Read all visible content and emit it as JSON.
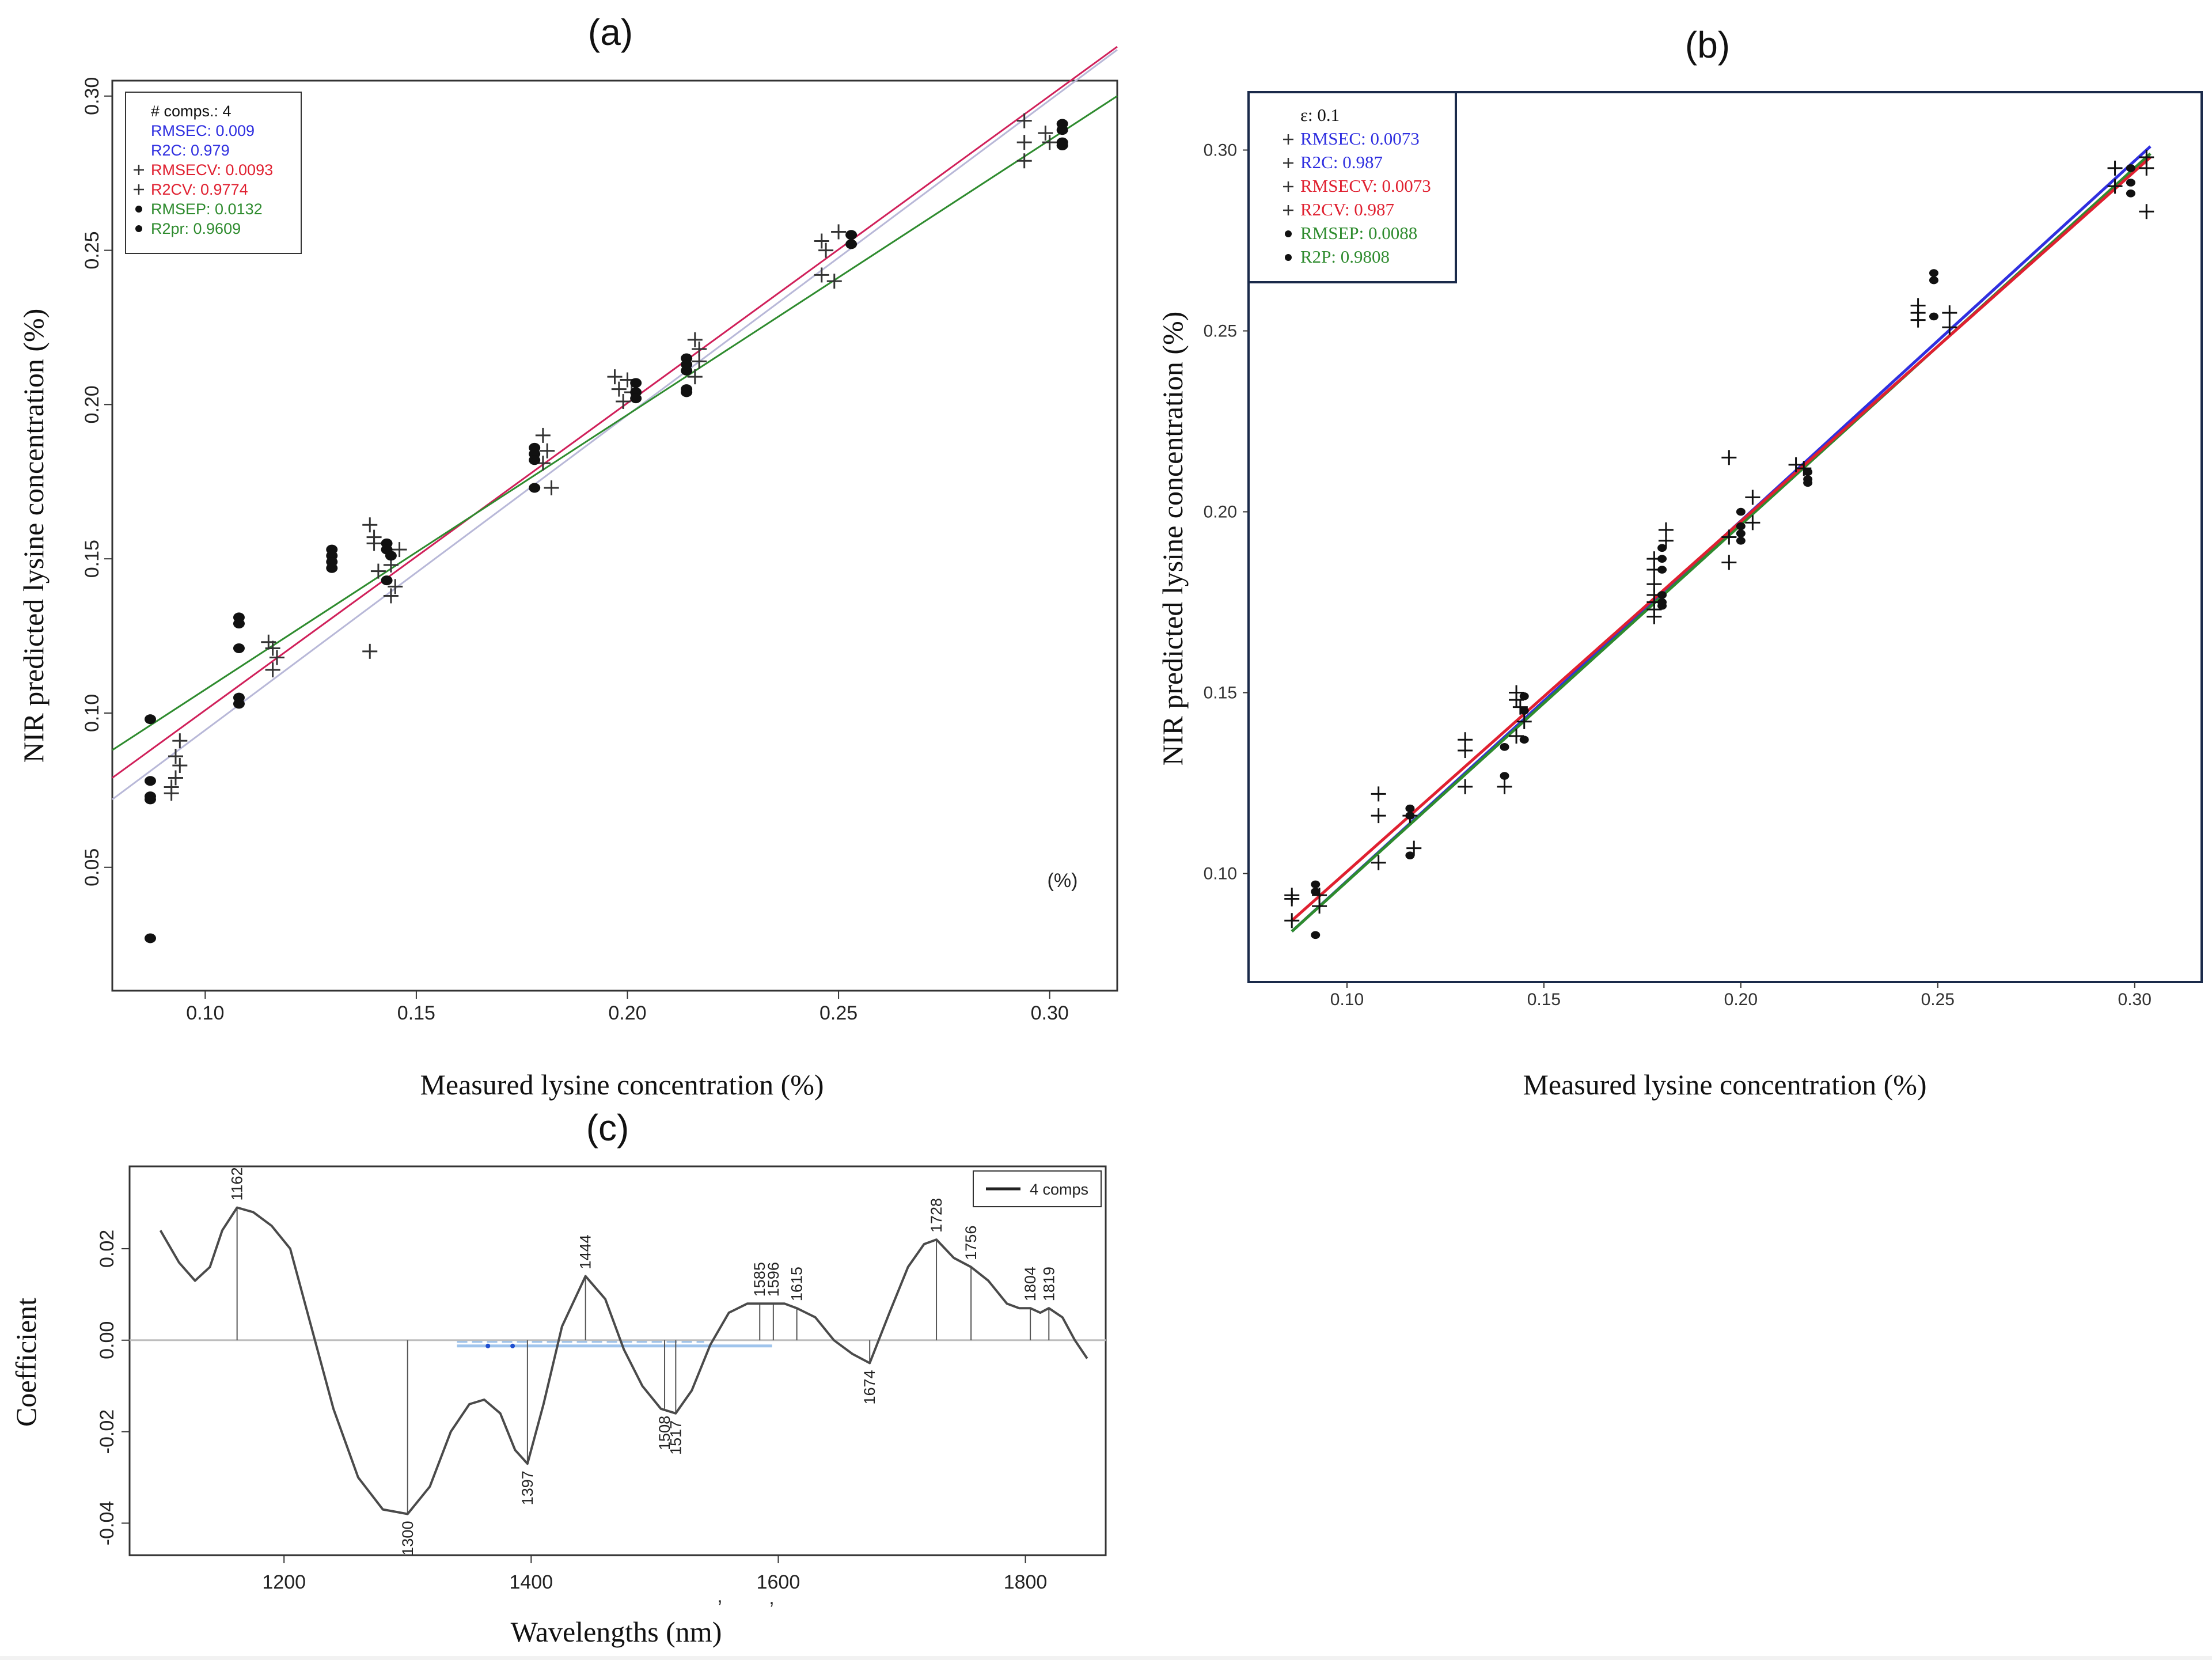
{
  "figure": {
    "panel_a_title": "(a)",
    "panel_b_title": "(b)",
    "panel_c_title": "(c)"
  },
  "chart_data": [
    {
      "id": "a",
      "type": "scatter",
      "title": "(a)",
      "xlabel": "Measured lysine concentration (%)",
      "ylabel": "NIR predicted lysine concentration (%)",
      "inner_annotation": "(%)",
      "xlim": [
        0.078,
        0.316
      ],
      "ylim": [
        0.01,
        0.305
      ],
      "xticks": [
        "0.10",
        "0.15",
        "0.20",
        "0.25",
        "0.30"
      ],
      "yticks": [
        "0.05",
        "0.10",
        "0.15",
        "0.20",
        "0.25",
        "0.30"
      ],
      "legend": {
        "position": "top-left",
        "entries": [
          {
            "text": "# comps.: 4",
            "color": "#111111",
            "marker": ""
          },
          {
            "text": "RMSEC: 0.009",
            "color": "#2f2fe0",
            "marker": ""
          },
          {
            "text": "R2C: 0.979",
            "color": "#2f2fe0",
            "marker": ""
          },
          {
            "text": "RMSECV: 0.0093",
            "color": "#e02030",
            "marker": "+"
          },
          {
            "text": "R2CV: 0.9774",
            "color": "#e02030",
            "marker": "+"
          },
          {
            "text": "RMSEP: 0.0132",
            "color": "#2e8b2e",
            "marker": "dot"
          },
          {
            "text": "R2pr: 0.9609",
            "color": "#2e8b2e",
            "marker": "dot"
          }
        ]
      },
      "lines": [
        {
          "name": "calibration",
          "color": "#b8b8d8",
          "x": [
            0.078,
            0.316
          ],
          "y": [
            0.072,
            0.315
          ]
        },
        {
          "name": "cross-validation",
          "color": "#d0205a",
          "x": [
            0.078,
            0.316
          ],
          "y": [
            0.079,
            0.316
          ]
        },
        {
          "name": "prediction",
          "color": "#2e8b2e",
          "x": [
            0.078,
            0.316
          ],
          "y": [
            0.088,
            0.3
          ]
        }
      ],
      "series": [
        {
          "name": "calibration/validation",
          "marker": "+",
          "color": "#333333",
          "points": [
            [
              0.092,
              0.074
            ],
            [
              0.093,
              0.079
            ],
            [
              0.093,
              0.086
            ],
            [
              0.094,
              0.091
            ],
            [
              0.094,
              0.083
            ],
            [
              0.092,
              0.076
            ],
            [
              0.115,
              0.123
            ],
            [
              0.116,
              0.121
            ],
            [
              0.117,
              0.118
            ],
            [
              0.116,
              0.114
            ],
            [
              0.139,
              0.161
            ],
            [
              0.14,
              0.155
            ],
            [
              0.141,
              0.146
            ],
            [
              0.139,
              0.12
            ],
            [
              0.144,
              0.138
            ],
            [
              0.145,
              0.141
            ],
            [
              0.144,
              0.148
            ],
            [
              0.146,
              0.153
            ],
            [
              0.14,
              0.157
            ],
            [
              0.18,
              0.19
            ],
            [
              0.181,
              0.185
            ],
            [
              0.18,
              0.181
            ],
            [
              0.182,
              0.173
            ],
            [
              0.197,
              0.209
            ],
            [
              0.198,
              0.205
            ],
            [
              0.199,
              0.201
            ],
            [
              0.2,
              0.208
            ],
            [
              0.201,
              0.204
            ],
            [
              0.216,
              0.221
            ],
            [
              0.217,
              0.218
            ],
            [
              0.217,
              0.214
            ],
            [
              0.216,
              0.209
            ],
            [
              0.246,
              0.253
            ],
            [
              0.247,
              0.25
            ],
            [
              0.25,
              0.256
            ],
            [
              0.246,
              0.242
            ],
            [
              0.249,
              0.24
            ],
            [
              0.294,
              0.292
            ],
            [
              0.294,
              0.285
            ],
            [
              0.294,
              0.279
            ],
            [
              0.299,
              0.288
            ],
            [
              0.3,
              0.285
            ]
          ]
        },
        {
          "name": "prediction",
          "marker": "dot",
          "color": "#111111",
          "points": [
            [
              0.087,
              0.098
            ],
            [
              0.087,
              0.078
            ],
            [
              0.087,
              0.072
            ],
            [
              0.087,
              0.073
            ],
            [
              0.087,
              0.027
            ],
            [
              0.108,
              0.131
            ],
            [
              0.108,
              0.129
            ],
            [
              0.108,
              0.121
            ],
            [
              0.108,
              0.105
            ],
            [
              0.108,
              0.103
            ],
            [
              0.13,
              0.153
            ],
            [
              0.13,
              0.151
            ],
            [
              0.13,
              0.149
            ],
            [
              0.13,
              0.147
            ],
            [
              0.143,
              0.155
            ],
            [
              0.143,
              0.153
            ],
            [
              0.144,
              0.151
            ],
            [
              0.143,
              0.143
            ],
            [
              0.178,
              0.186
            ],
            [
              0.178,
              0.184
            ],
            [
              0.178,
              0.182
            ],
            [
              0.178,
              0.173
            ],
            [
              0.202,
              0.207
            ],
            [
              0.202,
              0.204
            ],
            [
              0.202,
              0.202
            ],
            [
              0.214,
              0.215
            ],
            [
              0.214,
              0.213
            ],
            [
              0.214,
              0.211
            ],
            [
              0.214,
              0.205
            ],
            [
              0.214,
              0.204
            ],
            [
              0.253,
              0.255
            ],
            [
              0.253,
              0.252
            ],
            [
              0.303,
              0.291
            ],
            [
              0.303,
              0.289
            ],
            [
              0.303,
              0.285
            ],
            [
              0.303,
              0.284
            ]
          ]
        }
      ]
    },
    {
      "id": "b",
      "type": "scatter",
      "title": "(b)",
      "xlabel": "Measured lysine concentration (%)",
      "ylabel": "NIR predicted lysine concentration (%)",
      "xlim": [
        0.075,
        0.317
      ],
      "ylim": [
        0.07,
        0.316
      ],
      "xticks": [
        "0.10",
        "0.15",
        "0.20",
        "0.25",
        "0.30"
      ],
      "yticks": [
        "0.10",
        "0.15",
        "0.20",
        "0.25",
        "0.30"
      ],
      "legend": {
        "position": "top-left",
        "entries": [
          {
            "text": "ε: 0.1",
            "color": "#111111",
            "marker": ""
          },
          {
            "text": "RMSEC: 0.0073",
            "color": "#2f2fe0",
            "marker": "+"
          },
          {
            "text": "R2C: 0.987",
            "color": "#2f2fe0",
            "marker": "+"
          },
          {
            "text": "RMSECV: 0.0073",
            "color": "#e02030",
            "marker": "+"
          },
          {
            "text": "R2CV: 0.987",
            "color": "#e02030",
            "marker": "+"
          },
          {
            "text": "RMSEP: 0.0088",
            "color": "#2e8b2e",
            "marker": "dot"
          },
          {
            "text": "R2P: 0.9808",
            "color": "#2e8b2e",
            "marker": "dot"
          }
        ]
      },
      "lines": [
        {
          "name": "calibration",
          "color": "#2f2fe0",
          "x": [
            0.086,
            0.304
          ],
          "y": [
            0.084,
            0.301
          ]
        },
        {
          "name": "prediction",
          "color": "#2e8b2e",
          "x": [
            0.086,
            0.304
          ],
          "y": [
            0.084,
            0.299
          ]
        },
        {
          "name": "cross-validation",
          "color": "#e02030",
          "x": [
            0.086,
            0.304
          ],
          "y": [
            0.087,
            0.298
          ]
        }
      ],
      "series": [
        {
          "name": "calibration/validation",
          "marker": "+",
          "color": "#111111",
          "points": [
            [
              0.086,
              0.093
            ],
            [
              0.086,
              0.094
            ],
            [
              0.086,
              0.087
            ],
            [
              0.093,
              0.094
            ],
            [
              0.093,
              0.091
            ],
            [
              0.108,
              0.122
            ],
            [
              0.108,
              0.116
            ],
            [
              0.108,
              0.103
            ],
            [
              0.116,
              0.116
            ],
            [
              0.117,
              0.107
            ],
            [
              0.13,
              0.137
            ],
            [
              0.13,
              0.134
            ],
            [
              0.13,
              0.124
            ],
            [
              0.14,
              0.124
            ],
            [
              0.143,
              0.15
            ],
            [
              0.143,
              0.148
            ],
            [
              0.144,
              0.146
            ],
            [
              0.145,
              0.142
            ],
            [
              0.143,
              0.138
            ],
            [
              0.178,
              0.187
            ],
            [
              0.178,
              0.184
            ],
            [
              0.178,
              0.18
            ],
            [
              0.178,
              0.177
            ],
            [
              0.178,
              0.175
            ],
            [
              0.178,
              0.173
            ],
            [
              0.178,
              0.171
            ],
            [
              0.181,
              0.195
            ],
            [
              0.181,
              0.192
            ],
            [
              0.197,
              0.215
            ],
            [
              0.197,
              0.193
            ],
            [
              0.197,
              0.186
            ],
            [
              0.203,
              0.204
            ],
            [
              0.203,
              0.197
            ],
            [
              0.214,
              0.213
            ],
            [
              0.216,
              0.212
            ],
            [
              0.245,
              0.257
            ],
            [
              0.245,
              0.255
            ],
            [
              0.245,
              0.253
            ],
            [
              0.253,
              0.255
            ],
            [
              0.253,
              0.251
            ],
            [
              0.295,
              0.295
            ],
            [
              0.295,
              0.29
            ],
            [
              0.303,
              0.298
            ],
            [
              0.303,
              0.295
            ],
            [
              0.303,
              0.283
            ]
          ]
        },
        {
          "name": "prediction",
          "marker": "dot",
          "color": "#111111",
          "points": [
            [
              0.092,
              0.097
            ],
            [
              0.092,
              0.095
            ],
            [
              0.092,
              0.083
            ],
            [
              0.116,
              0.118
            ],
            [
              0.116,
              0.116
            ],
            [
              0.116,
              0.105
            ],
            [
              0.14,
              0.135
            ],
            [
              0.14,
              0.127
            ],
            [
              0.145,
              0.149
            ],
            [
              0.145,
              0.145
            ],
            [
              0.145,
              0.137
            ],
            [
              0.18,
              0.19
            ],
            [
              0.18,
              0.187
            ],
            [
              0.18,
              0.184
            ],
            [
              0.18,
              0.177
            ],
            [
              0.18,
              0.175
            ],
            [
              0.18,
              0.174
            ],
            [
              0.2,
              0.2
            ],
            [
              0.2,
              0.196
            ],
            [
              0.2,
              0.194
            ],
            [
              0.2,
              0.192
            ],
            [
              0.217,
              0.211
            ],
            [
              0.217,
              0.209
            ],
            [
              0.217,
              0.208
            ],
            [
              0.249,
              0.266
            ],
            [
              0.249,
              0.264
            ],
            [
              0.249,
              0.254
            ],
            [
              0.299,
              0.295
            ],
            [
              0.299,
              0.291
            ],
            [
              0.299,
              0.288
            ]
          ]
        }
      ]
    },
    {
      "id": "c",
      "type": "line",
      "title": "(c)",
      "xlabel": "Wavelengths (nm)",
      "ylabel": "Coefficient",
      "xlim": [
        1075,
        1865
      ],
      "ylim": [
        -0.047,
        0.038
      ],
      "xticks": [
        "1200",
        "1400",
        "1600",
        "1800"
      ],
      "yticks": [
        "-0.04",
        "-0.02",
        "0.00",
        "0.02"
      ],
      "stray_marks": [
        ",",
        ","
      ],
      "legend": {
        "position": "top-right",
        "entries": [
          {
            "text": "4 comps",
            "color": "#222222"
          }
        ]
      },
      "series": [
        {
          "name": "4 comps",
          "color": "#4a4a4a",
          "x": [
            1100,
            1115,
            1128,
            1140,
            1150,
            1162,
            1175,
            1190,
            1205,
            1220,
            1240,
            1260,
            1280,
            1300,
            1318,
            1335,
            1350,
            1362,
            1375,
            1387,
            1397,
            1410,
            1425,
            1444,
            1460,
            1475,
            1490,
            1505,
            1517,
            1530,
            1545,
            1560,
            1575,
            1585,
            1596,
            1605,
            1615,
            1630,
            1645,
            1660,
            1674,
            1690,
            1705,
            1718,
            1728,
            1742,
            1756,
            1770,
            1785,
            1795,
            1804,
            1812,
            1819,
            1830,
            1840,
            1850
          ],
          "y": [
            0.024,
            0.017,
            0.013,
            0.016,
            0.024,
            0.029,
            0.028,
            0.025,
            0.02,
            0.005,
            -0.015,
            -0.03,
            -0.037,
            -0.038,
            -0.032,
            -0.02,
            -0.014,
            -0.013,
            -0.016,
            -0.024,
            -0.027,
            -0.014,
            0.003,
            0.014,
            0.009,
            -0.002,
            -0.01,
            -0.015,
            -0.016,
            -0.011,
            -0.001,
            0.006,
            0.008,
            0.008,
            0.008,
            0.008,
            0.007,
            0.005,
            0.0,
            -0.003,
            -0.005,
            0.006,
            0.016,
            0.021,
            0.022,
            0.018,
            0.016,
            0.013,
            0.008,
            0.007,
            0.007,
            0.006,
            0.007,
            0.005,
            0.0,
            -0.004
          ]
        },
        {
          "name": "peak-labels",
          "labels": [
            "1162",
            "1300",
            "1397",
            "1444",
            "1508",
            "1517",
            "1585",
            "1596",
            "1615",
            "1674",
            "1728",
            "1756",
            "1804",
            "1819"
          ],
          "x": [
            1162,
            1300,
            1397,
            1444,
            1508,
            1517,
            1585,
            1596,
            1615,
            1674,
            1728,
            1756,
            1804,
            1819
          ],
          "y": [
            0.029,
            -0.038,
            -0.027,
            0.014,
            -0.015,
            -0.016,
            0.008,
            0.008,
            0.007,
            -0.005,
            0.022,
            0.016,
            0.007,
            0.007
          ]
        }
      ],
      "highlight_band": {
        "x": [
          1340,
          1595
        ],
        "color": "#9fc4ec"
      }
    }
  ]
}
